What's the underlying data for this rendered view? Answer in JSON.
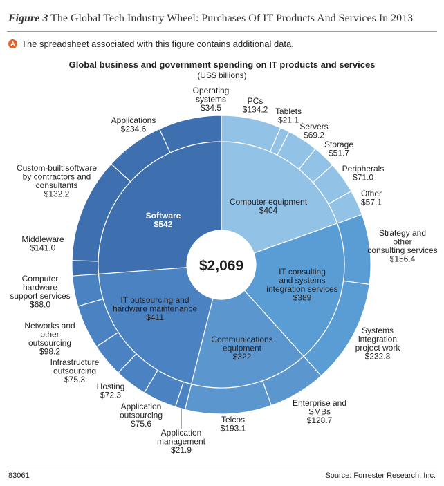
{
  "figure": {
    "number": "Figure 3",
    "title": "The Global Tech Industry Wheel: Purchases Of IT Products And Services In 2013",
    "note": "The spreadsheet associated with this figure contains additional data.",
    "note_icon": "spreadsheet-icon",
    "figure_id": "83061",
    "source": "Source: Forrester Research, Inc."
  },
  "colors": {
    "software": "#3e6fae",
    "computer_equipment": "#92c3e6",
    "it_consulting": "#5a9dd5",
    "communications": "#5b96cf",
    "it_outsourcing": "#4a82c2",
    "center_label": "#ffffff"
  },
  "chart_data": {
    "type": "pie",
    "subtype": "sunburst",
    "title": "Global business and government spending on IT products and services",
    "subtitle": "(US$ billions)",
    "total_label": "$2,069",
    "total": 2069,
    "categories": [
      {
        "name": "Software",
        "value_label": "$542",
        "value": 542,
        "children": [
          {
            "name": "Operating systems",
            "value_label": "$34.5",
            "value": 34.5
          },
          {
            "name": "Applications",
            "value_label": "$234.6",
            "value": 234.6
          },
          {
            "name": "Custom-built software by contractors and consultants",
            "value_label": "$132.2",
            "value": 132.2
          },
          {
            "name": "Middleware",
            "value_label": "$141.0",
            "value": 141.0
          }
        ]
      },
      {
        "name": "Computer equipment",
        "value_label": "$404",
        "value": 404,
        "children": [
          {
            "name": "PCs",
            "value_label": "$134.2",
            "value": 134.2
          },
          {
            "name": "Tablets",
            "value_label": "$21.1",
            "value": 21.1
          },
          {
            "name": "Servers",
            "value_label": "$69.2",
            "value": 69.2
          },
          {
            "name": "Storage",
            "value_label": "$51.7",
            "value": 51.7
          },
          {
            "name": "Peripherals",
            "value_label": "$71.0",
            "value": 71.0
          },
          {
            "name": "Other",
            "value_label": "$57.1",
            "value": 57.1
          }
        ]
      },
      {
        "name": "IT consulting and systems integration services",
        "value_label": "$389",
        "value": 389,
        "children": [
          {
            "name": "Strategy and other consulting services",
            "value_label": "$156.4",
            "value": 156.4
          },
          {
            "name": "Systems integration project work",
            "value_label": "$232.8",
            "value": 232.8
          }
        ]
      },
      {
        "name": "Communications equipment",
        "value_label": "$322",
        "value": 322,
        "children": [
          {
            "name": "Enterprise and SMBs",
            "value_label": "$128.7",
            "value": 128.7
          },
          {
            "name": "Telcos",
            "value_label": "$193.1",
            "value": 193.1
          }
        ]
      },
      {
        "name": "IT outsourcing and hardware maintenance",
        "value_label": "$411",
        "value": 411,
        "children": [
          {
            "name": "Application management",
            "value_label": "$21.9",
            "value": 21.9
          },
          {
            "name": "Application outsourcing",
            "value_label": "$75.6",
            "value": 75.6
          },
          {
            "name": "Hosting",
            "value_label": "$72.3",
            "value": 72.3
          },
          {
            "name": "Infrastructure outsourcing",
            "value_label": "$75.3",
            "value": 75.3
          },
          {
            "name": "Networks and other outsourcing",
            "value_label": "$98.2",
            "value": 98.2
          },
          {
            "name": "Computer hardware support services",
            "value_label": "$68.0",
            "value": 68.0
          }
        ]
      }
    ]
  }
}
